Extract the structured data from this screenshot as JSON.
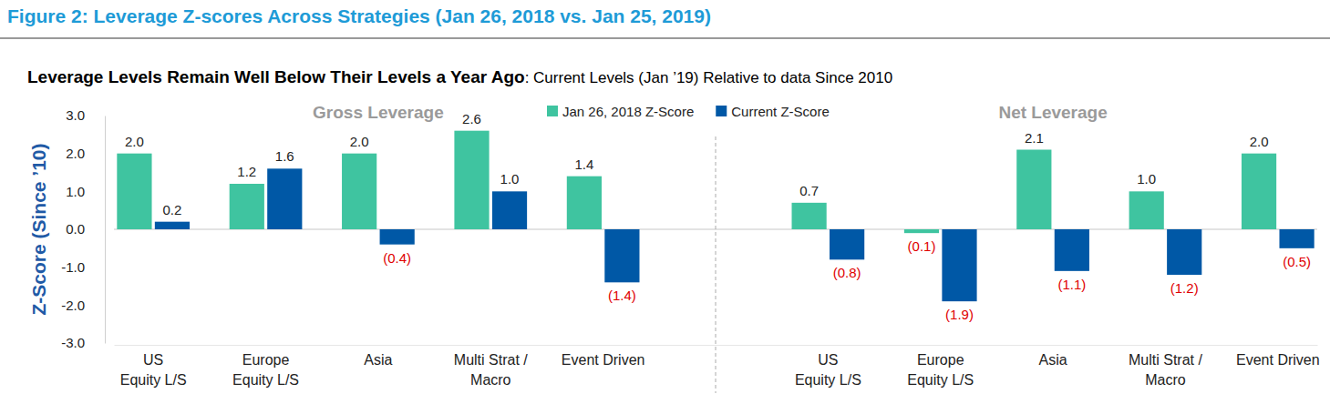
{
  "header": {
    "title": "Figure 2: Leverage Z-scores Across Strategies (Jan 26, 2018 vs. Jan 25, 2019)",
    "subtitle": [
      "Leverage Levels Remain Well Below Their Levels a Year Ago",
      ": Current Levels (Jan ’19) Relative to data Since 2010"
    ]
  },
  "chart_data": {
    "type": "bar",
    "y_label": "Z-Score (Since ’10)",
    "annotations": [
      {
        "text": "Gross Leverage"
      },
      {
        "text": "Net Leverage"
      }
    ],
    "categories": [
      "US\nEquity L/S",
      "Europe\nEquity L/S",
      "Asia",
      "Multi Strat /\nMacro",
      "Event Driven",
      null,
      "US\nEquity L/S",
      "Europe\nEquity L/S",
      "Asia",
      "Multi Strat /\nMacro",
      "Event Driven"
    ],
    "series": [
      {
        "name": "Jan 26, 2018 Z-Score",
        "color": "#3fc4a0",
        "values": [
          2.0,
          1.2,
          2.0,
          2.6,
          1.4,
          null,
          0.7,
          -0.1,
          2.1,
          1.0,
          2.0
        ],
        "value_labels": [
          "2.0",
          "1.2",
          "2.0",
          "2.6",
          "1.4",
          null,
          "0.7",
          "(0.1)",
          "2.1",
          "1.0",
          "2.0"
        ]
      },
      {
        "name": "Current Z-Score",
        "color": "#0058a6",
        "values": [
          0.2,
          1.6,
          -0.4,
          1.0,
          -1.4,
          null,
          -0.8,
          -1.9,
          -1.1,
          -1.2,
          -0.5
        ],
        "value_labels": [
          "0.2",
          "1.6",
          "(0.4)",
          "1.0",
          "(1.4)",
          null,
          "(0.8)",
          "(1.9)",
          "(1.1)",
          "(1.2)",
          "(0.5)"
        ]
      }
    ],
    "ylim": [
      -3,
      3
    ],
    "yticks": [
      {
        "value": 3,
        "label": "3.0"
      },
      {
        "value": 2,
        "label": "2.0"
      },
      {
        "value": 1,
        "label": "1.0"
      },
      {
        "value": 0,
        "label": "0.0"
      },
      {
        "value": -1,
        "label": "-1.0"
      },
      {
        "value": -2,
        "label": "-2.0"
      },
      {
        "value": -3,
        "label": "-3.0"
      }
    ],
    "legend": "top",
    "data_labels": true,
    "grid": false
  }
}
